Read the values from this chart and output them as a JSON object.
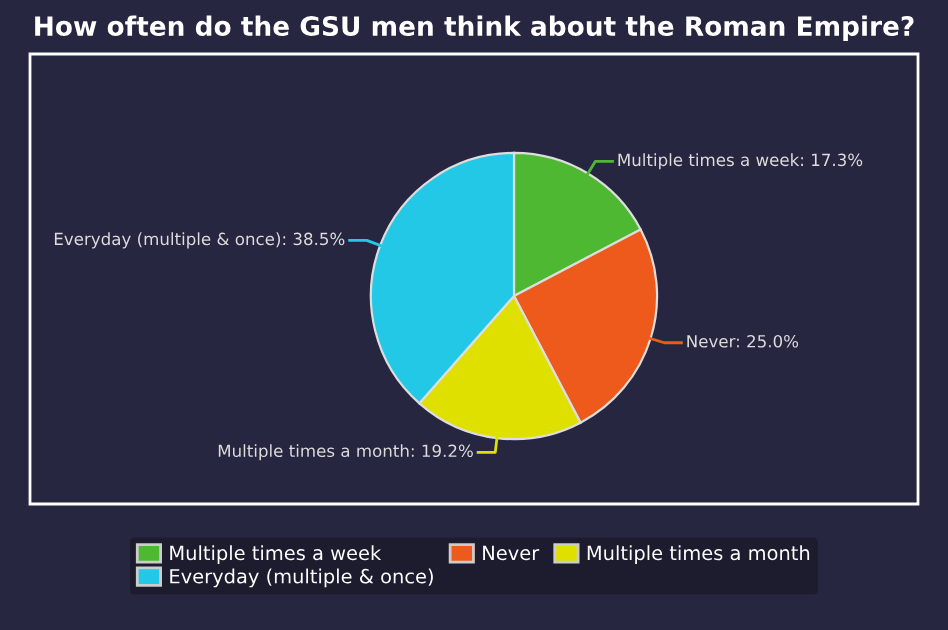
{
  "chart_data": {
    "type": "pie",
    "title": "How often do the GSU men think about the Roman Empire?",
    "categories": [
      "Multiple times a week",
      "Never",
      "Multiple times a month",
      "Everyday (multiple & once)"
    ],
    "values": [
      17.3,
      25.0,
      19.2,
      38.5
    ],
    "colors": [
      "#4fb833",
      "#ee5a1c",
      "#dfe000",
      "#22c8e6"
    ],
    "value_labels": [
      "Multiple times a week: 17.3%",
      "Never: 25.0%",
      "Multiple times a month: 19.2%",
      "Everyday (multiple & once): 38.5%"
    ],
    "legend": "bottom"
  }
}
